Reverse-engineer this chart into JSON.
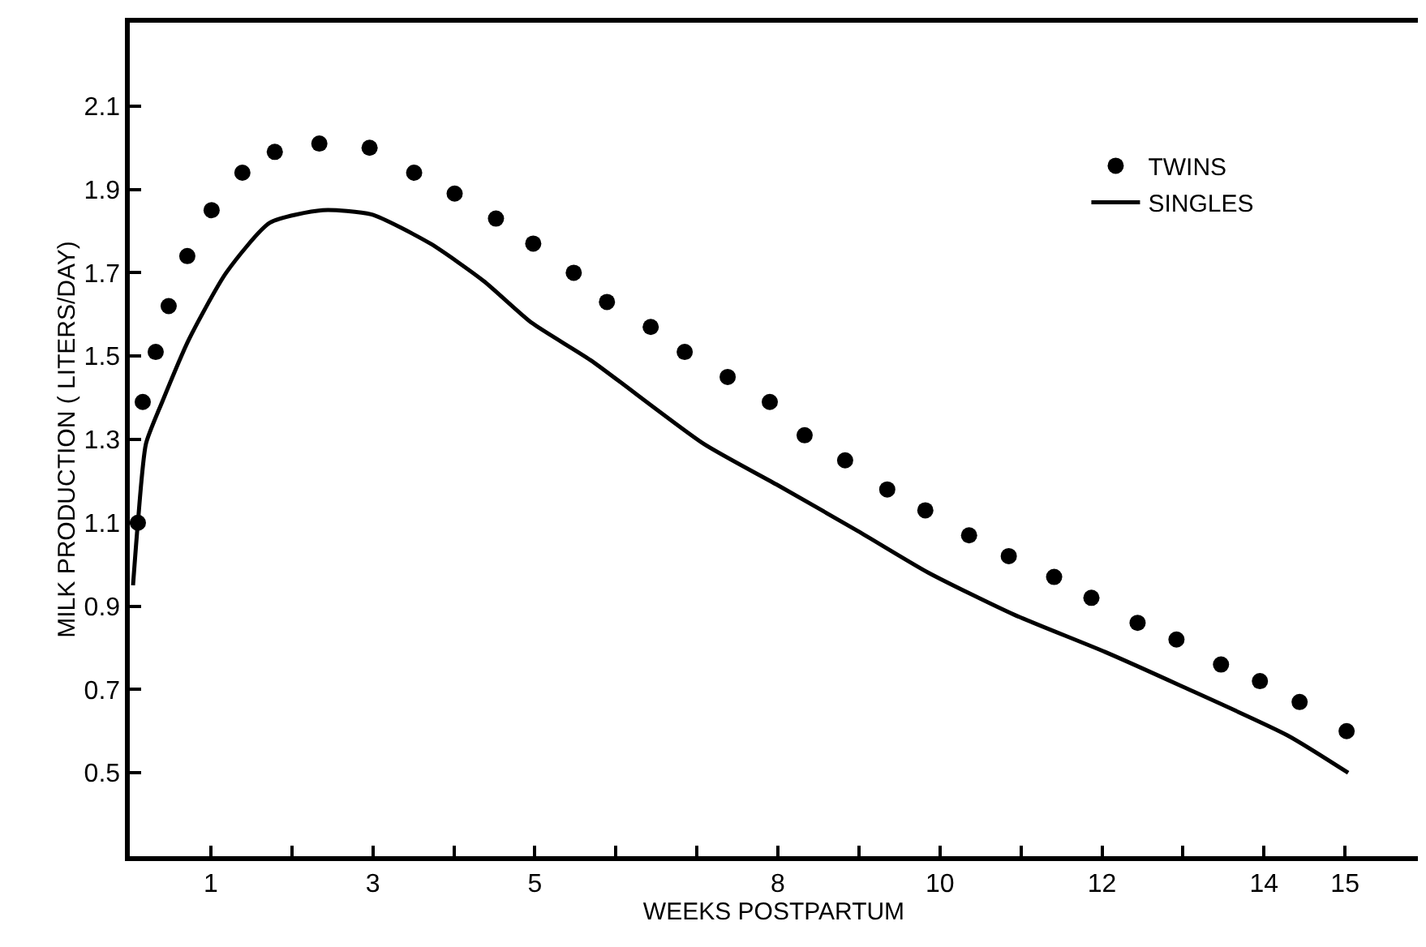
{
  "chart_data": {
    "type": "line",
    "xlabel": "WEEKS POSTPARTUM",
    "ylabel": "MILK PRODUCTION ( LITERS/DAY)",
    "xlim": [
      0,
      15.9
    ],
    "ylim": [
      0.3,
      2.3
    ],
    "xticks": [
      {
        "value": 0,
        "label": null
      },
      1,
      {
        "value": 2,
        "label": null
      },
      3,
      {
        "value": 4,
        "label": null
      },
      5,
      {
        "value": 6,
        "label": null
      },
      {
        "value": 7,
        "label": null
      },
      8,
      {
        "value": 9,
        "label": null
      },
      10,
      {
        "value": 11,
        "label": null
      },
      12,
      {
        "value": 13,
        "label": null
      },
      14,
      15
    ],
    "yticks": [
      0.5,
      0.7,
      0.9,
      1.1,
      1.3,
      1.5,
      1.7,
      1.9,
      2.1
    ],
    "legend": "top right",
    "series": [
      {
        "name": "TWINS",
        "type": "scatter",
        "marker": "circle",
        "color": "#000000",
        "x": [
          0.1,
          0.16,
          0.32,
          0.48,
          0.71,
          1.01,
          1.39,
          1.79,
          2.34,
          2.96,
          3.51,
          4.01,
          4.52,
          4.98,
          5.48,
          5.89,
          6.43,
          6.85,
          7.38,
          7.9,
          8.33,
          8.83,
          9.35,
          9.82,
          10.36,
          10.85,
          11.41,
          11.87,
          12.44,
          12.92,
          13.47,
          13.95,
          14.44,
          15.02
        ],
        "values": [
          1.1,
          1.39,
          1.51,
          1.62,
          1.74,
          1.85,
          1.94,
          1.99,
          2.01,
          2.0,
          1.94,
          1.89,
          1.83,
          1.77,
          1.7,
          1.63,
          1.57,
          1.51,
          1.45,
          1.39,
          1.31,
          1.25,
          1.18,
          1.13,
          1.07,
          1.02,
          0.97,
          0.92,
          0.86,
          0.82,
          0.76,
          0.72,
          0.67,
          0.6
        ]
      },
      {
        "name": "SINGLES",
        "line_style": "solid",
        "color": "#000000",
        "x": [
          0.04,
          0.1,
          0.2,
          0.4,
          0.73,
          1.19,
          1.73,
          2.38,
          2.98,
          3.71,
          4.37,
          4.96,
          5.69,
          7.08,
          8.0,
          8.99,
          9.86,
          10.91,
          12.04,
          12.96,
          14.29,
          15.04
        ],
        "values": [
          0.95,
          1.1,
          1.29,
          1.39,
          1.54,
          1.7,
          1.82,
          1.85,
          1.84,
          1.77,
          1.68,
          1.58,
          1.49,
          1.29,
          1.19,
          1.08,
          0.98,
          0.88,
          0.79,
          0.71,
          0.59,
          0.5
        ]
      }
    ]
  }
}
